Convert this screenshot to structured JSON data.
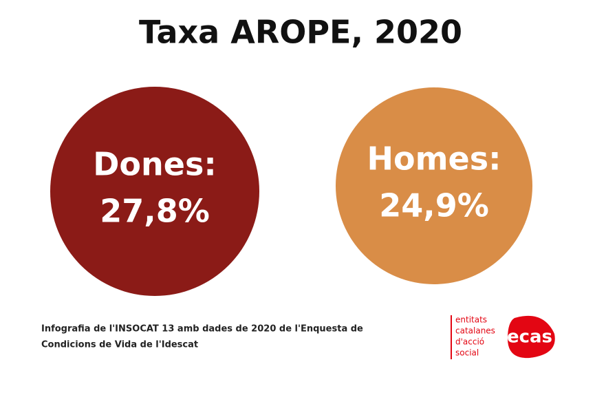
{
  "header": {
    "title": "Taxa AROPE, 2020"
  },
  "circles": [
    {
      "label": "Dones:",
      "value": "27,8%",
      "color": "#8b1b17"
    },
    {
      "label": "Homes:",
      "value": "24,9%",
      "color": "#d98d47"
    }
  ],
  "footer": {
    "lines": [
      "Infografia de l'INSOCAT 13 amb dades de 2020 de l'Enquesta de",
      "Condicions de Vida de l'Idescat"
    ]
  },
  "logo": {
    "lines": [
      "entitats",
      "catalanes",
      "d'acció",
      "social"
    ],
    "mark": "ecas"
  }
}
